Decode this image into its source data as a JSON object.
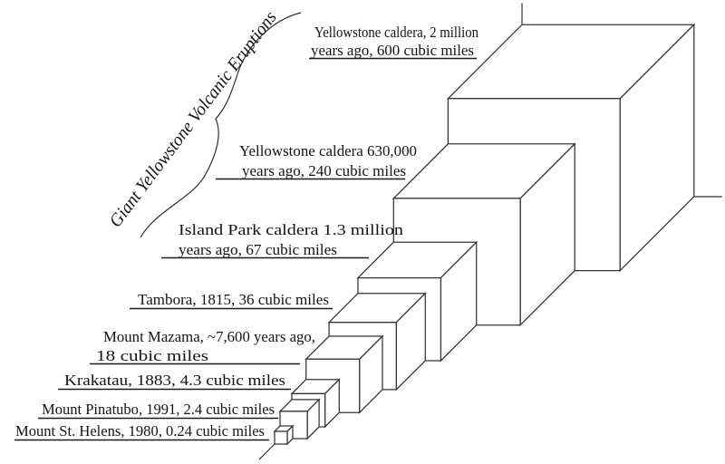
{
  "title": "Giant Yellowstone Volcanic Eruptions",
  "diagram": {
    "type": "volume-comparison-cubes",
    "unit": "cubic miles",
    "projection": "oblique-45deg",
    "background_color": "#ffffff",
    "ink_color": "#1a1a1a",
    "eruptions": [
      {
        "lines": [
          "Yellowstone caldera, 2 million",
          "years ago, 600 cubic miles"
        ],
        "volume_cubic_miles": 600
      },
      {
        "lines": [
          "Yellowstone caldera 630,000",
          "years ago, 240 cubic miles"
        ],
        "volume_cubic_miles": 240
      },
      {
        "lines": [
          "Island Park caldera 1.3 million",
          "years ago, 67 cubic miles"
        ],
        "volume_cubic_miles": 67
      },
      {
        "lines": [
          "Tambora, 1815, 36 cubic miles"
        ],
        "volume_cubic_miles": 36
      },
      {
        "lines": [
          "Mount Mazama, ~7,600 years ago,",
          "18 cubic miles"
        ],
        "volume_cubic_miles": 18
      },
      {
        "lines": [
          "Krakatau, 1883, 4.3 cubic miles"
        ],
        "volume_cubic_miles": 4.3
      },
      {
        "lines": [
          "Mount Pinatubo, 1991, 2.4 cubic miles"
        ],
        "volume_cubic_miles": 2.4
      },
      {
        "lines": [
          "Mount St. Helens, 1980, 0.24 cubic miles"
        ],
        "volume_cubic_miles": 0.24
      }
    ]
  }
}
